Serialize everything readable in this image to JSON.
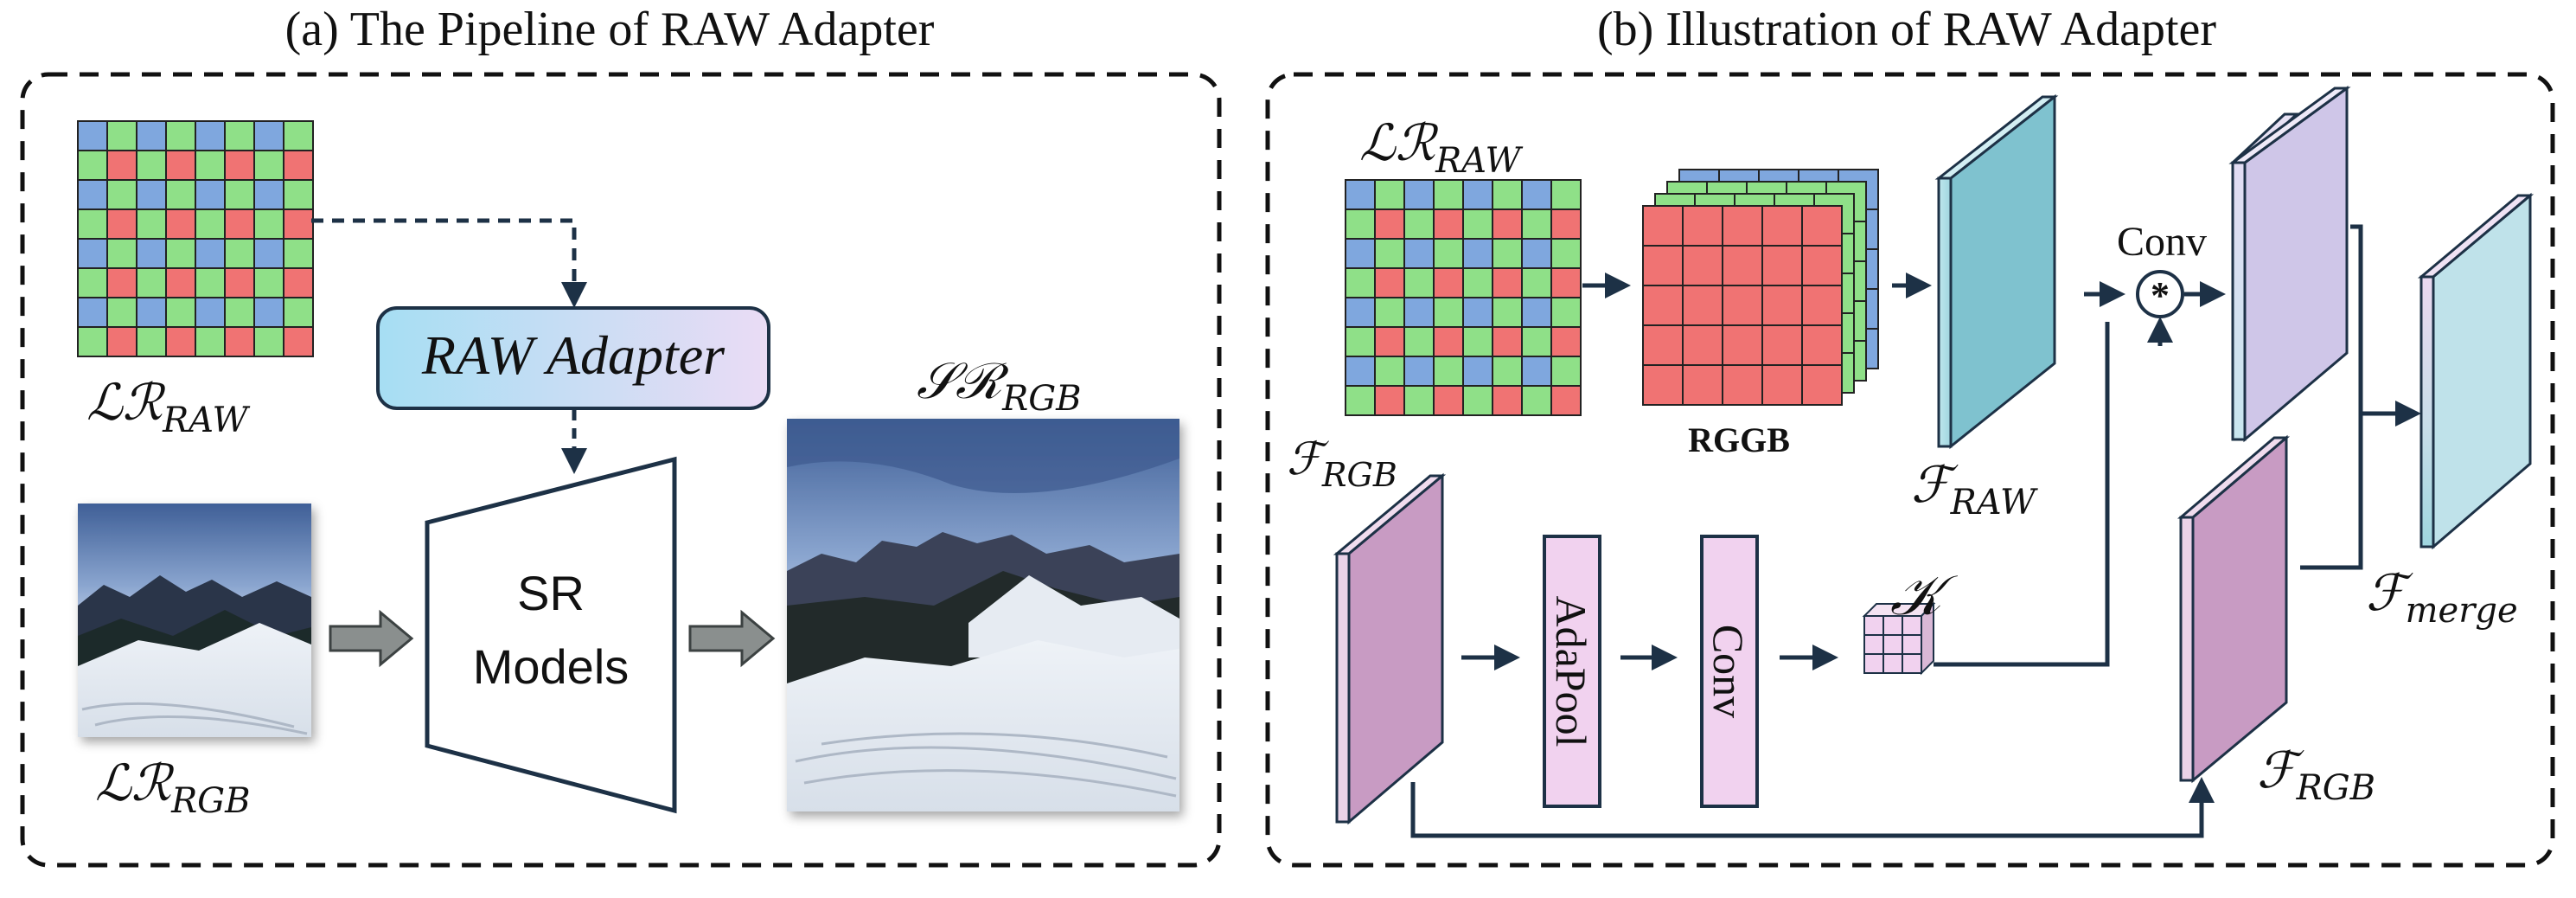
{
  "panel_a": {
    "title": "(a) The Pipeline of RAW Adapter",
    "raw_input_label": {
      "main": "ℒℛ",
      "sub": "RAW"
    },
    "rgb_input_label": {
      "main": "ℒℛ",
      "sub": "RGB"
    },
    "output_label": {
      "main": "𝒮ℛ",
      "sub": "RGB"
    },
    "adapter_label": "RAW Adapter",
    "sr_model_label_line1": "SR",
    "sr_model_label_line2": "Models"
  },
  "panel_b": {
    "title": "(b) Illustration of RAW Adapter",
    "raw_input_label": {
      "main": "ℒℛ",
      "sub": "RAW"
    },
    "rggb_label": "RGGB",
    "f_raw_label": {
      "main": "ℱ",
      "sub": "RAW"
    },
    "f_rgb_in_label": {
      "main": "ℱ",
      "sub": "RGB"
    },
    "f_rgb_out_label": {
      "main": "ℱ",
      "sub": "RGB"
    },
    "f_merge_label": {
      "main": "ℱ",
      "sub": "merge"
    },
    "conv_op_label": "Conv",
    "conv_symbol": "⊛",
    "kernel_label": "𝒦",
    "adapool_label": "AdaPool",
    "conv_block_label": "Conv"
  },
  "colors": {
    "bayer_red": "#f07373",
    "bayer_green": "#8fe088",
    "bayer_blue": "#7fa7de",
    "feature_blue": "#a9dde6",
    "feature_purple": "#d8a8d2",
    "block_pink": "#f1d2ef",
    "arrow": "#1d3146",
    "gray_arrow": "#8a8f8e",
    "adapter_grad_start": "#a6def3",
    "adapter_grad_end": "#eadcf5"
  }
}
